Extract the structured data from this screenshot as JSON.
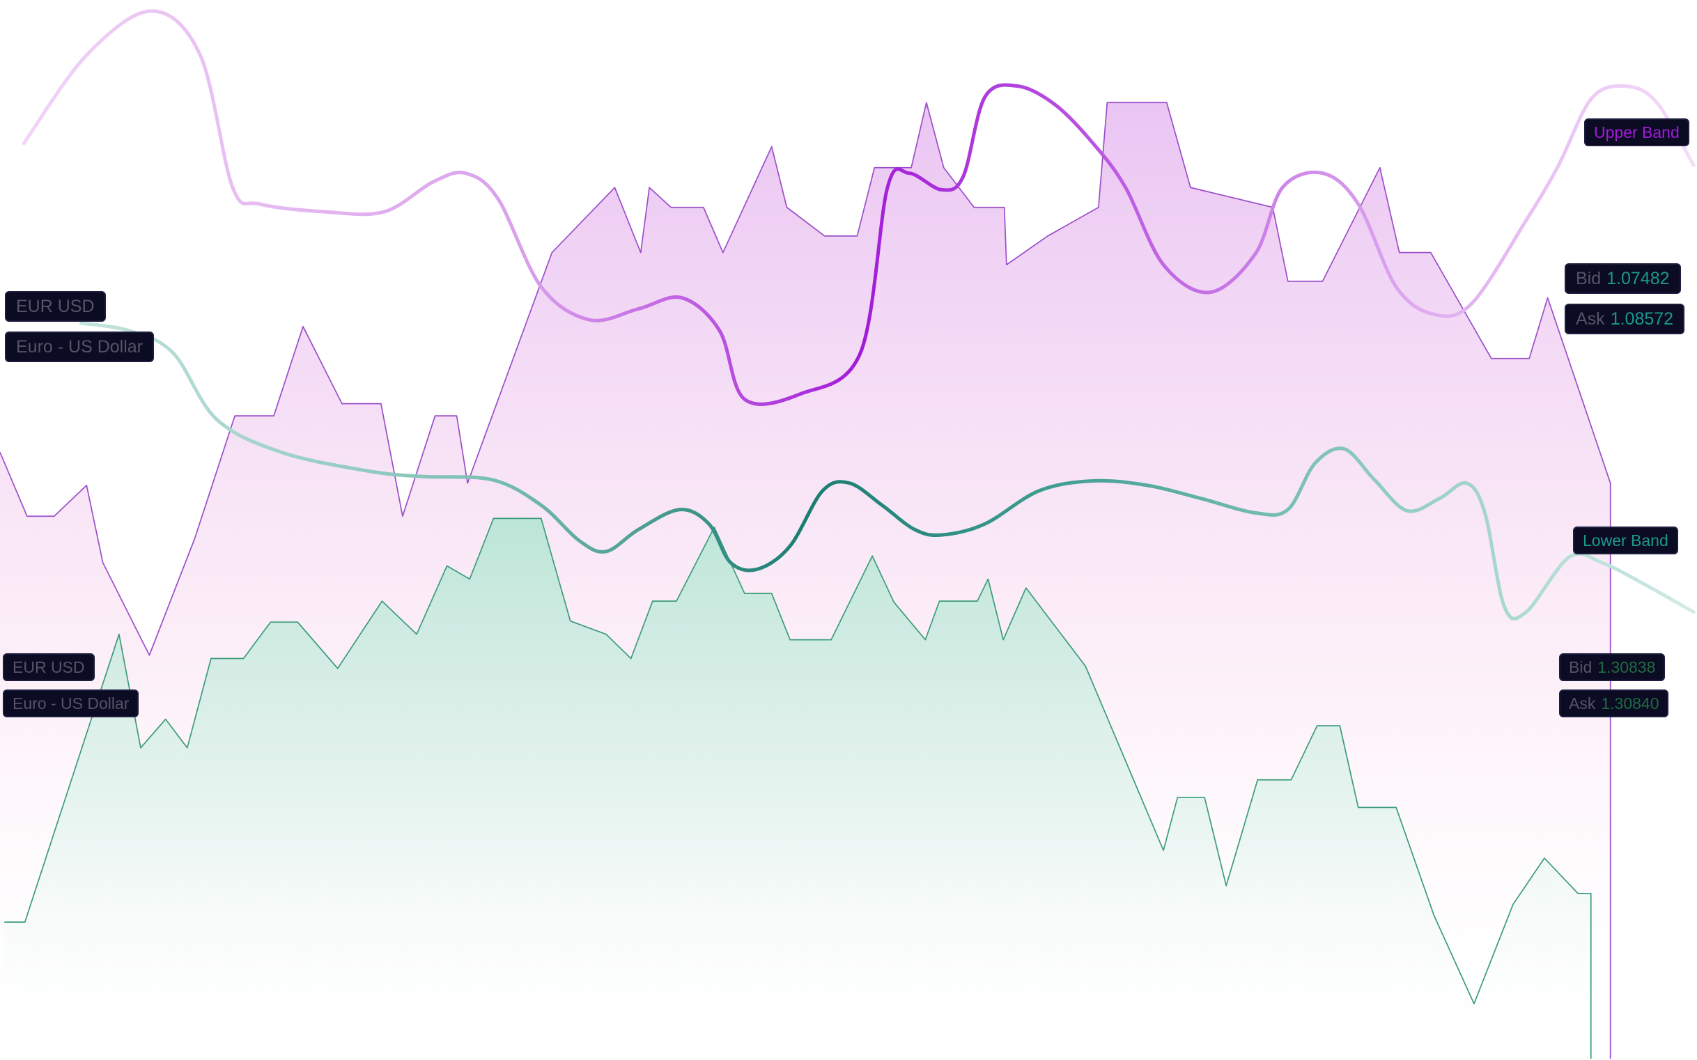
{
  "colors": {
    "purple_strong": "#a21bd8",
    "purple_mid": "#c879e6",
    "purple_light": "#e7b9f1",
    "purple_area_line": "#9b4fc9",
    "teal_strong": "#1a7d72",
    "teal_light": "#a9d6cf",
    "green_area_line": "#3c9c7c",
    "tag_bg": "#0b0b24",
    "tag_text": "#545466",
    "tag_value_teal": "#1a9a8a",
    "tag_value_green": "#1f6b3f",
    "tag_upper": "#a21bd8",
    "tag_lower": "#1a9a8a"
  },
  "labels": {
    "upper_band": "Upper Band",
    "lower_band": "Lower Band",
    "pair_top": {
      "symbol": "EUR USD",
      "name": "Euro - US Dollar"
    },
    "pair_bottom": {
      "symbol": "EUR USD",
      "name": "Euro - US Dollar"
    },
    "quote_top": {
      "bid_label": "Bid",
      "bid_value": "1.07482",
      "ask_label": "Ask",
      "ask_value": "1.08572"
    },
    "quote_bottom": {
      "bid_label": "Bid",
      "bid_value": "1.30838",
      "ask_label": "Ask",
      "ask_value": "1.30840"
    }
  },
  "chart_data": {
    "type": "area",
    "axes": "none",
    "grid": false,
    "series": [
      {
        "style": "stepped-area",
        "color": "purple",
        "points": [
          [
            0,
            410
          ],
          [
            25,
            468
          ],
          [
            50,
            468
          ],
          [
            80,
            440
          ],
          [
            95,
            510
          ],
          [
            138,
            594
          ],
          [
            180,
            488
          ],
          [
            217,
            377
          ],
          [
            253,
            377
          ],
          [
            280,
            296
          ],
          [
            316,
            366
          ],
          [
            352,
            366
          ],
          [
            372,
            468
          ],
          [
            402,
            377
          ],
          [
            422,
            377
          ],
          [
            432,
            438
          ],
          [
            510,
            229
          ],
          [
            568,
            170
          ],
          [
            592,
            229
          ],
          [
            600,
            170
          ],
          [
            620,
            188
          ],
          [
            650,
            188
          ],
          [
            668,
            229
          ],
          [
            713,
            133
          ],
          [
            727,
            188
          ],
          [
            762,
            214
          ],
          [
            792,
            214
          ],
          [
            808,
            152
          ],
          [
            842,
            152
          ],
          [
            856,
            93
          ],
          [
            872,
            152
          ],
          [
            900,
            188
          ],
          [
            928,
            188
          ],
          [
            930,
            240
          ],
          [
            968,
            214
          ],
          [
            1015,
            188
          ],
          [
            1023,
            93
          ],
          [
            1078,
            93
          ],
          [
            1100,
            170
          ],
          [
            1176,
            188
          ],
          [
            1190,
            255
          ],
          [
            1222,
            255
          ],
          [
            1275,
            152
          ],
          [
            1293,
            229
          ],
          [
            1322,
            229
          ],
          [
            1378,
            325
          ],
          [
            1413,
            325
          ],
          [
            1430,
            270
          ],
          [
            1488,
            438
          ],
          [
            1488,
            960
          ]
        ]
      },
      {
        "style": "stepped-area",
        "color": "green",
        "points": [
          [
            4,
            836
          ],
          [
            23,
            836
          ],
          [
            110,
            575
          ],
          [
            130,
            678
          ],
          [
            153,
            652
          ],
          [
            173,
            678
          ],
          [
            195,
            597
          ],
          [
            225,
            597
          ],
          [
            250,
            564
          ],
          [
            275,
            564
          ],
          [
            312,
            606
          ],
          [
            353,
            545
          ],
          [
            385,
            575
          ],
          [
            413,
            513
          ],
          [
            434,
            525
          ],
          [
            456,
            470
          ],
          [
            500,
            470
          ],
          [
            527,
            563
          ],
          [
            560,
            575
          ],
          [
            583,
            597
          ],
          [
            603,
            545
          ],
          [
            625,
            545
          ],
          [
            660,
            478
          ],
          [
            688,
            538
          ],
          [
            713,
            538
          ],
          [
            730,
            580
          ],
          [
            768,
            580
          ],
          [
            806,
            504
          ],
          [
            826,
            546
          ],
          [
            855,
            580
          ],
          [
            868,
            545
          ],
          [
            903,
            545
          ],
          [
            913,
            525
          ],
          [
            927,
            580
          ],
          [
            948,
            533
          ],
          [
            1003,
            604
          ],
          [
            1075,
            771
          ],
          [
            1088,
            723
          ],
          [
            1113,
            723
          ],
          [
            1133,
            803
          ],
          [
            1162,
            707
          ],
          [
            1193,
            707
          ],
          [
            1217,
            658
          ],
          [
            1238,
            658
          ],
          [
            1255,
            732
          ],
          [
            1290,
            732
          ],
          [
            1325,
            830
          ],
          [
            1362,
            910
          ],
          [
            1398,
            820
          ],
          [
            1427,
            778
          ],
          [
            1458,
            810
          ],
          [
            1470,
            810
          ],
          [
            1470,
            960
          ]
        ]
      },
      {
        "style": "smooth-line",
        "name": "Upper Band",
        "color": "purple",
        "points": [
          [
            22,
            130
          ],
          [
            80,
            50
          ],
          [
            140,
            10
          ],
          [
            185,
            50
          ],
          [
            215,
            170
          ],
          [
            240,
            185
          ],
          [
            300,
            192
          ],
          [
            355,
            192
          ],
          [
            400,
            165
          ],
          [
            430,
            157
          ],
          [
            460,
            180
          ],
          [
            500,
            260
          ],
          [
            545,
            290
          ],
          [
            590,
            280
          ],
          [
            630,
            270
          ],
          [
            665,
            300
          ],
          [
            688,
            362
          ],
          [
            740,
            357
          ],
          [
            795,
            320
          ],
          [
            820,
            170
          ],
          [
            840,
            157
          ],
          [
            870,
            172
          ],
          [
            890,
            160
          ],
          [
            910,
            88
          ],
          [
            940,
            78
          ],
          [
            975,
            95
          ],
          [
            1010,
            130
          ],
          [
            1040,
            170
          ],
          [
            1075,
            240
          ],
          [
            1118,
            265
          ],
          [
            1160,
            230
          ],
          [
            1185,
            170
          ],
          [
            1222,
            157
          ],
          [
            1255,
            185
          ],
          [
            1290,
            260
          ],
          [
            1325,
            285
          ],
          [
            1360,
            275
          ],
          [
            1410,
            200
          ],
          [
            1440,
            150
          ],
          [
            1470,
            90
          ],
          [
            1500,
            78
          ],
          [
            1530,
            92
          ],
          [
            1565,
            150
          ]
        ]
      },
      {
        "style": "smooth-line",
        "name": "Lower Band",
        "color": "teal",
        "points": [
          [
            75,
            293
          ],
          [
            120,
            300
          ],
          [
            160,
            320
          ],
          [
            200,
            380
          ],
          [
            260,
            410
          ],
          [
            340,
            427
          ],
          [
            390,
            432
          ],
          [
            455,
            435
          ],
          [
            500,
            458
          ],
          [
            535,
            490
          ],
          [
            560,
            500
          ],
          [
            590,
            480
          ],
          [
            628,
            462
          ],
          [
            655,
            475
          ],
          [
            675,
            510
          ],
          [
            700,
            516
          ],
          [
            730,
            495
          ],
          [
            760,
            445
          ],
          [
            785,
            438
          ],
          [
            815,
            458
          ],
          [
            845,
            480
          ],
          [
            870,
            485
          ],
          [
            910,
            475
          ],
          [
            960,
            445
          ],
          [
            1010,
            436
          ],
          [
            1060,
            440
          ],
          [
            1110,
            452
          ],
          [
            1160,
            465
          ],
          [
            1190,
            462
          ],
          [
            1215,
            420
          ],
          [
            1242,
            407
          ],
          [
            1270,
            435
          ],
          [
            1300,
            463
          ],
          [
            1330,
            452
          ],
          [
            1355,
            438
          ],
          [
            1372,
            465
          ],
          [
            1390,
            550
          ],
          [
            1410,
            555
          ],
          [
            1450,
            505
          ],
          [
            1480,
            510
          ],
          [
            1520,
            530
          ],
          [
            1565,
            555
          ]
        ]
      }
    ]
  }
}
